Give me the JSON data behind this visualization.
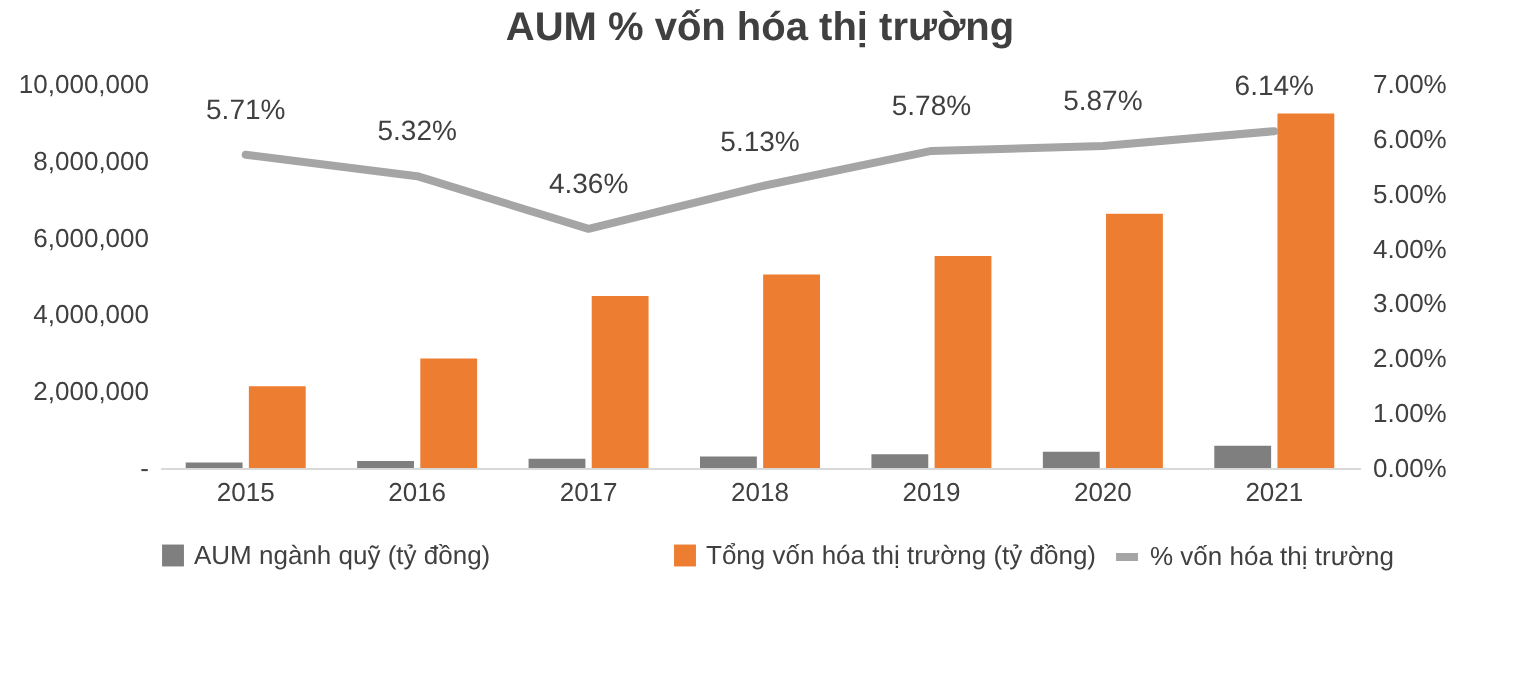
{
  "chart_data": {
    "type": "bar",
    "title": "AUM % vốn hóa thị trường",
    "categories": [
      "2015",
      "2016",
      "2017",
      "2018",
      "2019",
      "2020",
      "2021"
    ],
    "series": [
      {
        "name": "AUM ngành quỹ (tỷ đồng)",
        "color": "#7f7f7f",
        "values": [
          140000,
          180000,
          240000,
          300000,
          360000,
          420000,
          580000
        ]
      },
      {
        "name": "Tổng vốn hóa thị trường (tỷ đồng)",
        "color": "#ed7d31",
        "values": [
          2130000,
          2850000,
          4480000,
          5040000,
          5520000,
          6620000,
          9230000
        ]
      },
      {
        "name": "% vốn hóa thị trường",
        "type": "line",
        "axis": "y2",
        "color": "#a5a5a5",
        "values": [
          5.71,
          5.32,
          4.36,
          5.13,
          5.78,
          5.87,
          6.14
        ],
        "value_labels": [
          "5.71%",
          "5.32%",
          "4.36%",
          "5.13%",
          "5.78%",
          "5.87%",
          "6.14%"
        ]
      }
    ],
    "ylim": [
      0,
      10000000
    ],
    "yticks": [
      {
        "value": 0,
        "label": "-"
      },
      {
        "value": 2000000,
        "label": "2,000,000"
      },
      {
        "value": 4000000,
        "label": "4,000,000"
      },
      {
        "value": 6000000,
        "label": "6,000,000"
      },
      {
        "value": 8000000,
        "label": "8,000,000"
      },
      {
        "value": 10000000,
        "label": "10,000,000"
      }
    ],
    "y2lim": [
      0,
      7
    ],
    "y2ticks": [
      {
        "value": 0,
        "label": "0.00%"
      },
      {
        "value": 1,
        "label": "1.00%"
      },
      {
        "value": 2,
        "label": "2.00%"
      },
      {
        "value": 3,
        "label": "3.00%"
      },
      {
        "value": 4,
        "label": "4.00%"
      },
      {
        "value": 5,
        "label": "5.00%"
      },
      {
        "value": 6,
        "label": "6.00%"
      },
      {
        "value": 7,
        "label": "7.00%"
      }
    ],
    "grid": false,
    "legend": "bottom",
    "marker": "none",
    "line_style": "solid"
  }
}
